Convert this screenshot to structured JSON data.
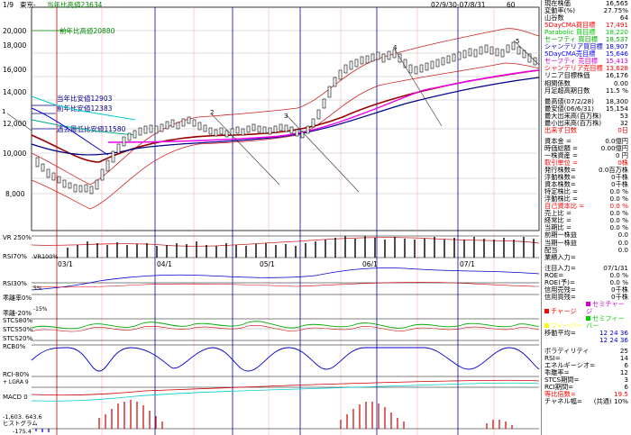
{
  "header": {
    "page_indicator": "1/9",
    "company_name": "東京-",
    "prev_year_low_label": "当年比高値23634",
    "date_range": "02/9/30-07/8/31",
    "bar_count": "60"
  },
  "main_chart": {
    "y_ticks": [
      "20,000",
      "18,000",
      "16,000",
      "14,000",
      "12,000",
      "10,000",
      "8,000"
    ],
    "annotations": [
      "前年比高値20880",
      "当年比安値12903",
      "前年比安値12383",
      "過去最低比安値11580"
    ],
    "wave_labels": [
      "1",
      "2",
      "3",
      "4",
      "5"
    ],
    "x_ticks": [
      "03/1",
      "04/1",
      "05/1",
      "06/1",
      "07/1"
    ]
  },
  "indicator_panels": {
    "vr_label": "VR 250%",
    "rsi_label": "RSI70%",
    "vr_tag": "VR100%",
    "rsi30_label": "RSI30%",
    "rsi30_level": "5%",
    "dev_label": "乖離率0%",
    "dev_level": "-15%",
    "dev_neg_label": "乖離-20%",
    "stcs80_label": "STCS80%",
    "stcs50_label": "STCS50%",
    "stcs20_label": "STCS20%",
    "rcb_label": "RCB0%",
    "rci_label": "RCI-80%",
    "rci_sub": "+ LGRA 9",
    "macd_label": "MACD 0",
    "macd_low": "-1,603. 643.6",
    "hist_label": "ヒストグラム",
    "hist_low": "-175.4"
  },
  "side_panel": {
    "rows": [
      {
        "label": "現在株価",
        "value": "16,565",
        "color": "#000000"
      },
      {
        "label": "変動率(%)",
        "value": "27.75%",
        "color": "#000000"
      },
      {
        "label": "山谷数",
        "value": "64",
        "color": "#000000"
      },
      {
        "label": "5DayCMA買目標",
        "value": "17,491",
        "color": "#ff0000"
      },
      {
        "label": "Parabolic 買目標",
        "value": "18,220",
        "color": "#00cc00"
      },
      {
        "label": "セーフティ 買目標",
        "value": "18,537",
        "color": "#00aa00"
      },
      {
        "label": "シャンデリア買目標",
        "value": "18,907",
        "color": "#0000cc"
      },
      {
        "label": "5DayCMA売目標",
        "value": "15,646",
        "color": "#0000ff"
      },
      {
        "label": "セーフティ 売目標",
        "value": "15,413",
        "color": "#cc00cc"
      },
      {
        "label": "シャンデリア売目標",
        "value": "13,628",
        "color": "#ff0000"
      },
      {
        "label": "リニア目標株価",
        "value": "16,176",
        "color": "#000000"
      },
      {
        "label": "相関係数",
        "value": "0.00",
        "color": "#000000"
      },
      {
        "label": "月足超高期日数",
        "value": "11.5 %",
        "color": "#000000"
      }
    ],
    "rows2": [
      {
        "label": "最高値(07/2/28)",
        "value": "18,300",
        "color": "#000000"
      },
      {
        "label": "最安値(06/6/31)",
        "value": "15,154",
        "color": "#000000"
      },
      {
        "label": "最大出来高(百万株)",
        "value": "53",
        "color": "#000000"
      },
      {
        "label": "最小出来高(百万株)",
        "value": "32",
        "color": "#000000"
      },
      {
        "label": "出来ず日数",
        "value": "0日",
        "color": "#ff0000"
      }
    ],
    "rows3": [
      {
        "label": "資本金 =",
        "value": "0.0億円",
        "color": "#000000"
      },
      {
        "label": "時価総額 =",
        "value": "0.00億円",
        "color": "#000000"
      },
      {
        "label": "一株資産 =",
        "value": "0 円",
        "color": "#000000"
      },
      {
        "label": "取引単位 =",
        "value": "0株",
        "color": "#ff0000"
      },
      {
        "label": "発行株数=",
        "value": "0.0百万株",
        "color": "#000000"
      },
      {
        "label": "浮動株数=",
        "value": "0千株",
        "color": "#000000"
      },
      {
        "label": "資本株数=",
        "value": "0千株",
        "color": "#000000"
      },
      {
        "label": "特定株比 =",
        "value": "0.0 %",
        "color": "#000000"
      },
      {
        "label": "浮動株比 =",
        "value": "0.0 %",
        "color": "#000000"
      },
      {
        "label": "自己資本比 =",
        "value": "0.0 %",
        "color": "#ff0000"
      },
      {
        "label": "売上比 =",
        "value": "0.0 %",
        "color": "#000000"
      },
      {
        "label": "経常比 =",
        "value": "0.0 %",
        "color": "#000000"
      },
      {
        "label": "当期比 =",
        "value": "0.0 %",
        "color": "#000000"
      },
      {
        "label": "前期一株益",
        "value": "0.0",
        "color": "#000000"
      },
      {
        "label": "当期一株益",
        "value": "0.0",
        "color": "#000000"
      },
      {
        "label": "配当",
        "value": "0.0",
        "color": "#000000"
      },
      {
        "label": "業績入力=",
        "value": "",
        "color": "#000000"
      }
    ],
    "rows4": [
      {
        "label": "注目入力=",
        "value": "07/1/31",
        "color": "#000000"
      },
      {
        "label": "ROE=",
        "value": "0.0 %",
        "color": "#000000"
      },
      {
        "label": "ROE(予)=",
        "value": "0.0 %",
        "color": "#000000"
      },
      {
        "label": "信用売残=",
        "value": "0千株",
        "color": "#000000"
      },
      {
        "label": "信用買残=",
        "value": "0千株",
        "color": "#000000"
      }
    ],
    "legend": [
      {
        "label": "チャージ",
        "color": "#ff0000"
      },
      {
        "label": "セミチャージ",
        "color": "#cc00cc"
      },
      {
        "label": "フィーバー",
        "color": "#ffff00"
      },
      {
        "label": "セミフィーバー",
        "color": "#00cc00"
      }
    ],
    "moving_avg_label": "移動平均=",
    "moving_avg_values": "12 24 36",
    "moving_avg_values2": "12 24 36",
    "rows5": [
      {
        "label": "ボラティリティ",
        "value": "25",
        "color": "#000000"
      },
      {
        "label": "RSI=",
        "value": "14",
        "color": "#000000"
      },
      {
        "label": "エネルギーシオ=",
        "value": "6",
        "color": "#000000"
      },
      {
        "label": "乖離率=",
        "value": "12",
        "color": "#000000"
      },
      {
        "label": "STCS期間=",
        "value": "3",
        "color": "#000000"
      },
      {
        "label": "RCI期間=",
        "value": "6",
        "color": "#000000"
      },
      {
        "label": "等比倍数=",
        "value": "19.5",
        "color": "#ff0000"
      },
      {
        "label": "チャネル幅=",
        "value": "(共通) 10%",
        "color": "#000000"
      }
    ]
  }
}
